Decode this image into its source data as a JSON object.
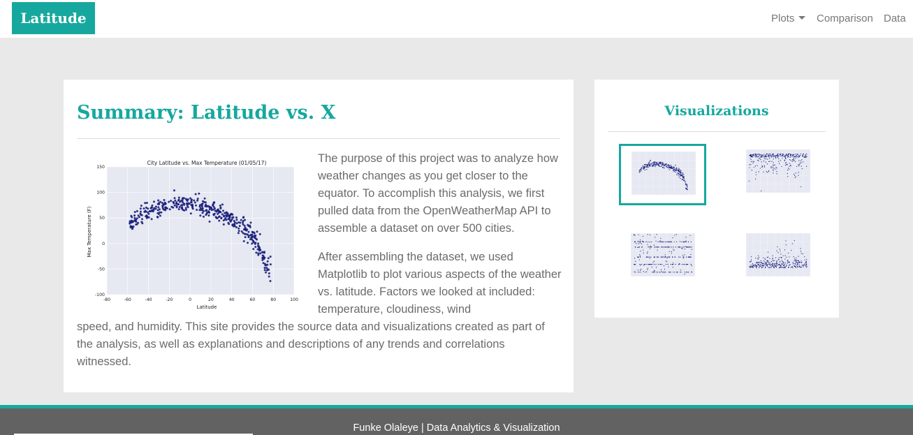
{
  "navbar": {
    "brand": "Latitude",
    "links": {
      "plots": "Plots",
      "comparison": "Comparison",
      "data": "Data"
    }
  },
  "summary": {
    "title": "Summary: Latitude vs. X",
    "paragraph_1": "The purpose of this project was to analyze how weather changes as you get closer to the equator. To accomplish this analysis, we first pulled data from the OpenWeatherMap API to assemble a dataset on over 500 cities.",
    "paragraph_2_wrapped": "After assembling the dataset, we used Matplotlib to plot various aspects of the weather vs. latitude. Factors we looked at included: temperature, cloudiness, wind",
    "paragraph_2_full": "speed, and humidity. This site provides the source data and visualizations created as part of the analysis, as well as explanations and descriptions of any trends and correlations witnessed."
  },
  "visualizations": {
    "title": "Visualizations",
    "thumbnails": [
      {
        "name": "max-temperature",
        "active": true
      },
      {
        "name": "humidity",
        "active": false
      },
      {
        "name": "cloudiness",
        "active": false
      },
      {
        "name": "wind-speed",
        "active": false
      }
    ]
  },
  "chart_data": {
    "type": "scatter",
    "title": "City Latitude vs. Max Temperature (01/05/17)",
    "xlabel": "Latitude",
    "ylabel": "Max Temperature (F)",
    "xlim": [
      -80,
      100
    ],
    "ylim": [
      -100,
      150
    ],
    "xticks": [
      -80,
      -60,
      -40,
      -20,
      0,
      20,
      40,
      60,
      80,
      100
    ],
    "yticks": [
      -100,
      -50,
      0,
      50,
      100,
      150
    ],
    "grid": true,
    "point_color": "#1a1f7a",
    "background": "#e6e8f2",
    "trend": [
      [
        -58,
        40
      ],
      [
        -45,
        60
      ],
      [
        -30,
        73
      ],
      [
        -20,
        77
      ],
      [
        -10,
        78
      ],
      [
        0,
        77
      ],
      [
        10,
        74
      ],
      [
        20,
        67
      ],
      [
        30,
        58
      ],
      [
        40,
        47
      ],
      [
        50,
        32
      ],
      [
        60,
        15
      ],
      [
        65,
        0
      ],
      [
        70,
        -25
      ],
      [
        73,
        -50
      ]
    ]
  },
  "footer": {
    "text": "Funke Olaleye | Data Analytics & Visualization"
  },
  "colors": {
    "accent": "#16a89e",
    "footer_bg": "#626262",
    "page_bg": "#e9e9e9"
  }
}
